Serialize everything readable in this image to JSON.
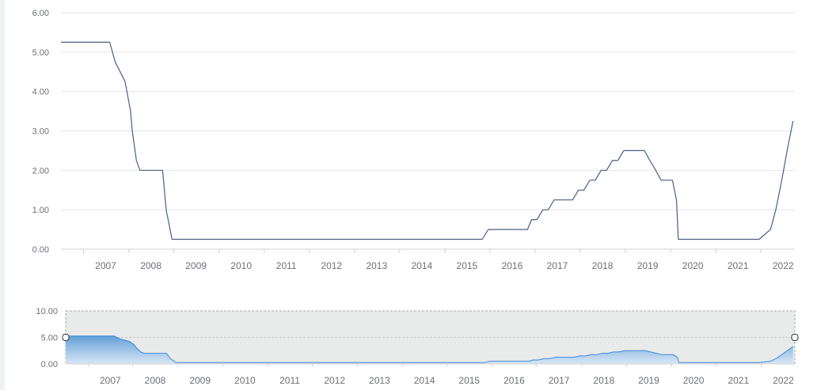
{
  "colors": {
    "line": "#4a5f86",
    "grid": "#e6e6e6",
    "axis": "#d0d0d0",
    "zoom_fill_top": "#5b9bd5",
    "zoom_fill_bottom": "#d6e7f7",
    "zoom_line": "#3c8ad8",
    "zoom_bg": "#e9eaea",
    "zoom_border": "#a8a8a8"
  },
  "chart_data": [
    {
      "type": "line",
      "title": "",
      "xlabel": "",
      "ylabel": "",
      "xlim": [
        2006.5,
        2022.75
      ],
      "ylim": [
        0,
        6
      ],
      "y_ticks": [
        "0.00",
        "1.00",
        "2.00",
        "3.00",
        "4.00",
        "5.00",
        "6.00"
      ],
      "x_ticks": [
        "2007",
        "2008",
        "2009",
        "2010",
        "2011",
        "2012",
        "2013",
        "2014",
        "2015",
        "2016",
        "2017",
        "2018",
        "2019",
        "2020",
        "2021",
        "2022"
      ],
      "grid": true,
      "series": [
        {
          "x": [
            2006.5,
            2007.58,
            2007.7,
            2007.92,
            2008.04,
            2008.08,
            2008.17,
            2008.25,
            2008.75,
            2008.83,
            2008.96,
            2015.83,
            2015.96,
            2016.83,
            2016.92,
            2017.04,
            2017.17,
            2017.29,
            2017.42,
            2017.54,
            2017.83,
            2017.96,
            2018.08,
            2018.21,
            2018.33,
            2018.46,
            2018.58,
            2018.71,
            2018.83,
            2018.96,
            2019.42,
            2019.54,
            2019.67,
            2019.79,
            2020.04,
            2020.13,
            2020.17,
            2021.96,
            2022.21,
            2022.33,
            2022.46,
            2022.58,
            2022.71
          ],
          "y": [
            5.25,
            5.25,
            4.75,
            4.25,
            3.5,
            3.0,
            2.25,
            2.0,
            2.0,
            1.0,
            0.25,
            0.25,
            0.5,
            0.5,
            0.75,
            0.75,
            1.0,
            1.0,
            1.25,
            1.25,
            1.25,
            1.5,
            1.5,
            1.75,
            1.75,
            2.0,
            2.0,
            2.25,
            2.25,
            2.5,
            2.5,
            2.25,
            2.0,
            1.75,
            1.75,
            1.25,
            0.25,
            0.25,
            0.5,
            1.0,
            1.75,
            2.5,
            3.25
          ]
        }
      ]
    },
    {
      "type": "area",
      "title": "",
      "xlabel": "",
      "ylabel": "",
      "xlim": [
        2006.5,
        2022.75
      ],
      "ylim": [
        0,
        10
      ],
      "y_ticks": [
        "0.00",
        "5.00",
        "10.00"
      ],
      "x_ticks": [
        "2007",
        "2008",
        "2009",
        "2010",
        "2011",
        "2012",
        "2013",
        "2014",
        "2015",
        "2016",
        "2017",
        "2018",
        "2019",
        "2020",
        "2021",
        "2022"
      ],
      "grid": false,
      "selection": [
        2006.5,
        2022.75
      ],
      "series": [
        {
          "x": [
            2006.5,
            2007.58,
            2007.7,
            2007.92,
            2008.04,
            2008.08,
            2008.17,
            2008.25,
            2008.75,
            2008.83,
            2008.96,
            2015.83,
            2015.96,
            2016.83,
            2016.92,
            2017.04,
            2017.17,
            2017.29,
            2017.42,
            2017.54,
            2017.83,
            2017.96,
            2018.08,
            2018.21,
            2018.33,
            2018.46,
            2018.58,
            2018.71,
            2018.83,
            2018.96,
            2019.42,
            2019.54,
            2019.67,
            2019.79,
            2020.04,
            2020.13,
            2020.17,
            2021.96,
            2022.21,
            2022.33,
            2022.46,
            2022.58,
            2022.71
          ],
          "y": [
            5.25,
            5.25,
            4.75,
            4.25,
            3.5,
            3.0,
            2.25,
            2.0,
            2.0,
            1.0,
            0.25,
            0.25,
            0.5,
            0.5,
            0.75,
            0.75,
            1.0,
            1.0,
            1.25,
            1.25,
            1.25,
            1.5,
            1.5,
            1.75,
            1.75,
            2.0,
            2.0,
            2.25,
            2.25,
            2.5,
            2.5,
            2.25,
            2.0,
            1.75,
            1.75,
            1.25,
            0.25,
            0.25,
            0.5,
            1.0,
            1.75,
            2.5,
            3.25
          ]
        }
      ]
    }
  ]
}
